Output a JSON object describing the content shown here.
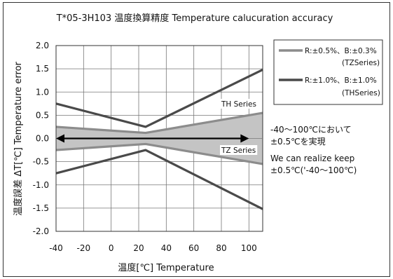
{
  "chart_data": {
    "type": "line",
    "title": "T*05-3H103 温度換算精度 Temperature calucuration accuracy",
    "xlabel": "温度[℃]  Temperature",
    "ylabel": "温度誤差 ΔT[℃] Temperature error",
    "xlim": [
      -40,
      110
    ],
    "ylim": [
      -2.0,
      2.0
    ],
    "x_ticks": [
      "-40",
      "-20",
      "0",
      "20",
      "40",
      "60",
      "80",
      "100"
    ],
    "y_ticks": [
      "2.0",
      "1.5",
      "1.0",
      "0.5",
      "0.0",
      "-0.5",
      "-1.0",
      "-1.5",
      "-2.0"
    ],
    "grid": true,
    "legend_position": "right",
    "series": [
      {
        "name": "R:±0.5%、B:±0.3%",
        "name_line2": "(TZSeries)",
        "color": "#8c8c8c",
        "upper": {
          "x": [
            -40,
            25,
            110
          ],
          "y": [
            0.25,
            0.12,
            0.55
          ]
        },
        "lower": {
          "x": [
            -40,
            25,
            110
          ],
          "y": [
            -0.25,
            -0.12,
            -0.55
          ]
        }
      },
      {
        "name": "R:±1.0%、B:±1.0%",
        "name_line2": "(THSeries)",
        "color": "#4a4a4a",
        "upper": {
          "x": [
            -40,
            25,
            110
          ],
          "y": [
            0.75,
            0.25,
            1.48
          ]
        },
        "lower": {
          "x": [
            -40,
            25,
            110
          ],
          "y": [
            -0.75,
            -0.25,
            -1.52
          ]
        }
      }
    ],
    "band_fill": "#c4c4c4",
    "annotations": {
      "th_series": "TH Series",
      "tz_series": "TZ Series",
      "arrow_range": [
        -40,
        100
      ],
      "note_jp_line1": "-40～100℃において",
      "note_jp_line2": "±0.5℃を実現",
      "note_en_line1": "We can realize keep",
      "note_en_line2": "±0.5℃('-40～100℃)"
    }
  }
}
